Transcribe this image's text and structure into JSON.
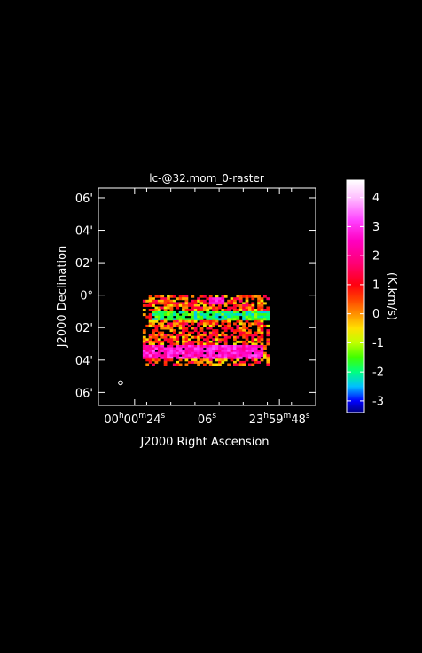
{
  "chart_data": {
    "type": "heatmap",
    "title": "lc-@32.mom_0-raster",
    "xlabel": "J2000 Right Ascension",
    "ylabel": "J2000 Declination",
    "x_ticks": [
      {
        "value": 24,
        "h": "00",
        "m": "00",
        "s": "24"
      },
      {
        "value": 6,
        "label": "06"
      },
      {
        "value": -12,
        "h": "23",
        "m": "59",
        "s": "48"
      }
    ],
    "y_ticks": [
      {
        "value": 6,
        "label": "06'"
      },
      {
        "value": 4,
        "label": "04'"
      },
      {
        "value": 2,
        "label": "02'"
      },
      {
        "value": 0,
        "label": "0°"
      },
      {
        "value": -2,
        "label": "02'"
      },
      {
        "value": -4,
        "label": "04'"
      },
      {
        "value": -6,
        "label": "06'"
      }
    ],
    "xlim": [
      33,
      -21
    ],
    "ylim": [
      -6.8,
      6.6
    ],
    "colorbar": {
      "label": "(K.km/s)",
      "range": [
        -3.4,
        4.6
      ],
      "ticks": [
        4,
        3,
        2,
        1,
        0,
        -1,
        -2,
        -3
      ],
      "stops": [
        {
          "v": -3.4,
          "c": "#000080"
        },
        {
          "v": -3.0,
          "c": "#0000ff"
        },
        {
          "v": -2.5,
          "c": "#00c0ff"
        },
        {
          "v": -2.0,
          "c": "#00ff80"
        },
        {
          "v": -1.5,
          "c": "#40ff00"
        },
        {
          "v": -1.0,
          "c": "#c0ff00"
        },
        {
          "v": -0.5,
          "c": "#ffe000"
        },
        {
          "v": 0.0,
          "c": "#ff9000"
        },
        {
          "v": 0.5,
          "c": "#ff4000"
        },
        {
          "v": 1.0,
          "c": "#ff0010"
        },
        {
          "v": 1.7,
          "c": "#ff0070"
        },
        {
          "v": 2.5,
          "c": "#ff00c0"
        },
        {
          "v": 3.2,
          "c": "#ff40ff"
        },
        {
          "v": 4.0,
          "c": "#ffc0ff"
        },
        {
          "v": 4.6,
          "c": "#ffffff"
        }
      ]
    },
    "map_extent": {
      "ra": [
        22,
        -9
      ],
      "dec": [
        -4.3,
        0.0
      ]
    },
    "features": [
      {
        "name": "central band",
        "dec": -1.2,
        "value": -1.8
      },
      {
        "name": "southern band",
        "dec": -3.4,
        "value": 2.6
      },
      {
        "name": "north knot",
        "dec": -0.3,
        "value": 2.4
      }
    ],
    "beam_marker": {
      "ra": 27.5,
      "dec": -5.4
    }
  }
}
